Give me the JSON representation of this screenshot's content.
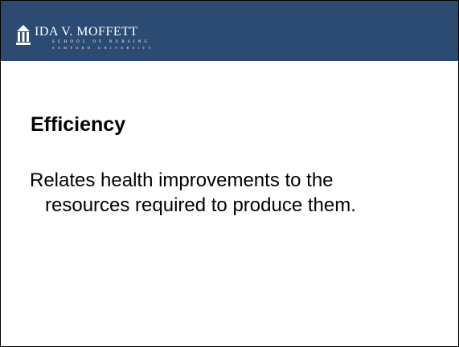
{
  "header": {
    "name": "IDA V. MOFFETT",
    "school": "SCHOOL OF NURSING",
    "university": "SAMFORD UNIVERSITY"
  },
  "slide": {
    "title": "Efficiency",
    "lines": [
      "Relates health improvements to the",
      "resources required to produce them."
    ]
  }
}
